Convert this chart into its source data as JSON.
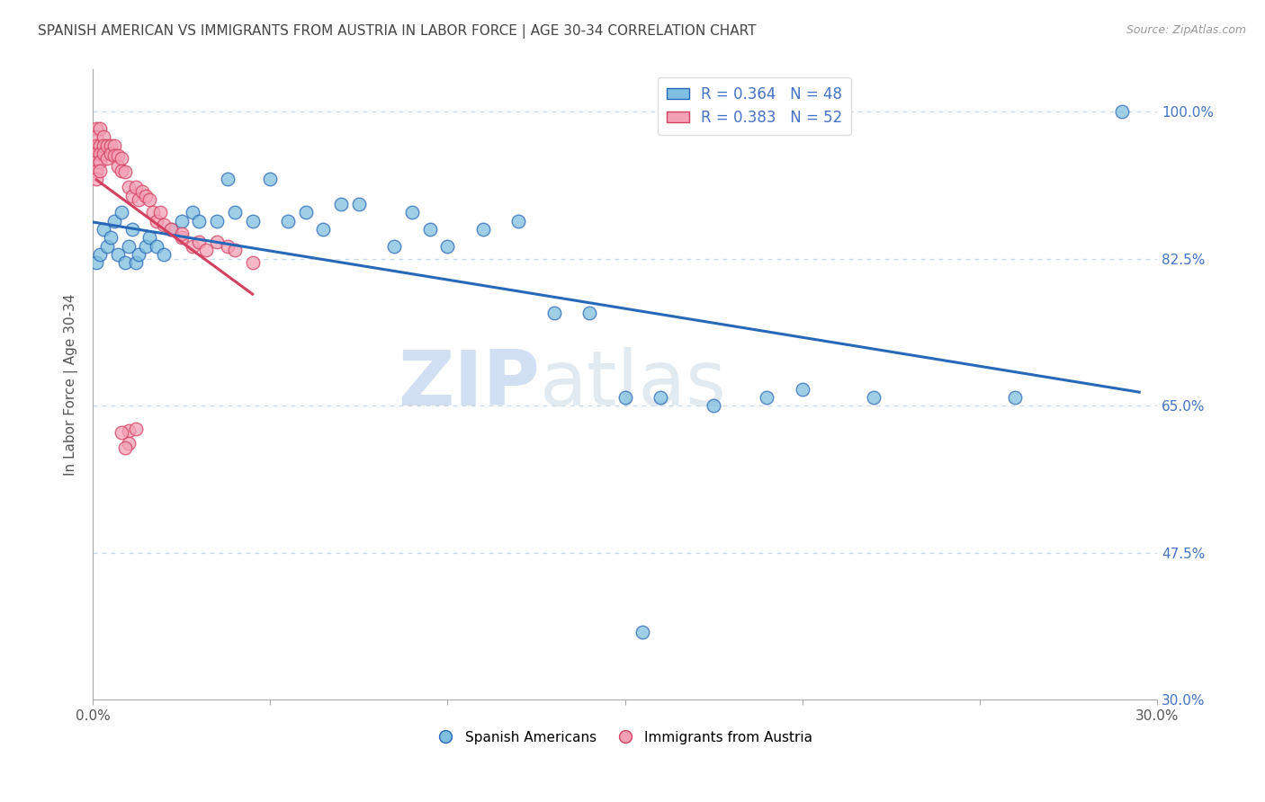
{
  "title": "SPANISH AMERICAN VS IMMIGRANTS FROM AUSTRIA IN LABOR FORCE | AGE 30-34 CORRELATION CHART",
  "source": "Source: ZipAtlas.com",
  "ylabel": "In Labor Force | Age 30-34",
  "xlim": [
    0.0,
    0.3
  ],
  "ylim": [
    0.3,
    1.05
  ],
  "xtick_vals": [
    0.0,
    0.05,
    0.1,
    0.15,
    0.2,
    0.25,
    0.3
  ],
  "xtick_labels": [
    "0.0%",
    "",
    "",
    "",
    "",
    "",
    "30.0%"
  ],
  "ytick_positions": [
    0.3,
    0.475,
    0.65,
    0.825,
    1.0
  ],
  "ytick_labels": [
    "30.0%",
    "47.5%",
    "65.0%",
    "82.5%",
    "100.0%"
  ],
  "R_blue": 0.364,
  "N_blue": 48,
  "R_pink": 0.383,
  "N_pink": 52,
  "color_blue": "#7fbfdf",
  "color_pink": "#f4a0b5",
  "color_blue_line": "#2868b8",
  "color_pink_line": "#d44060",
  "legend_label_blue": "Spanish Americans",
  "legend_label_pink": "Immigrants from Austria",
  "blue_x": [
    0.001,
    0.002,
    0.003,
    0.004,
    0.005,
    0.006,
    0.007,
    0.008,
    0.009,
    0.01,
    0.011,
    0.012,
    0.013,
    0.015,
    0.016,
    0.018,
    0.02,
    0.022,
    0.025,
    0.028,
    0.03,
    0.035,
    0.038,
    0.04,
    0.045,
    0.05,
    0.055,
    0.06,
    0.065,
    0.07,
    0.075,
    0.085,
    0.09,
    0.095,
    0.1,
    0.11,
    0.12,
    0.13,
    0.14,
    0.15,
    0.155,
    0.16,
    0.175,
    0.19,
    0.2,
    0.22,
    0.26,
    0.29
  ],
  "blue_y": [
    0.82,
    0.83,
    0.86,
    0.84,
    0.85,
    0.87,
    0.83,
    0.88,
    0.82,
    0.84,
    0.86,
    0.82,
    0.83,
    0.84,
    0.85,
    0.84,
    0.83,
    0.86,
    0.87,
    0.88,
    0.87,
    0.87,
    0.92,
    0.88,
    0.87,
    0.92,
    0.87,
    0.88,
    0.86,
    0.89,
    0.89,
    0.84,
    0.88,
    0.86,
    0.84,
    0.86,
    0.87,
    0.76,
    0.76,
    0.66,
    0.38,
    0.66,
    0.65,
    0.66,
    0.67,
    0.66,
    0.66,
    1.0
  ],
  "pink_x": [
    0.001,
    0.001,
    0.001,
    0.001,
    0.001,
    0.001,
    0.001,
    0.002,
    0.002,
    0.002,
    0.002,
    0.002,
    0.003,
    0.003,
    0.003,
    0.004,
    0.004,
    0.005,
    0.005,
    0.006,
    0.006,
    0.007,
    0.007,
    0.008,
    0.008,
    0.009,
    0.01,
    0.011,
    0.012,
    0.013,
    0.014,
    0.015,
    0.016,
    0.017,
    0.018,
    0.019,
    0.02,
    0.022,
    0.025,
    0.025,
    0.028,
    0.03,
    0.032,
    0.035,
    0.038,
    0.04,
    0.045,
    0.01,
    0.01,
    0.012,
    0.008,
    0.009
  ],
  "pink_y": [
    0.98,
    0.97,
    0.96,
    0.95,
    0.94,
    0.93,
    0.92,
    0.96,
    0.95,
    0.94,
    0.93,
    0.98,
    0.97,
    0.96,
    0.95,
    0.96,
    0.945,
    0.96,
    0.95,
    0.96,
    0.948,
    0.948,
    0.935,
    0.945,
    0.93,
    0.928,
    0.91,
    0.9,
    0.91,
    0.895,
    0.905,
    0.9,
    0.895,
    0.88,
    0.87,
    0.88,
    0.865,
    0.86,
    0.85,
    0.855,
    0.84,
    0.845,
    0.835,
    0.845,
    0.84,
    0.835,
    0.82,
    0.62,
    0.605,
    0.622,
    0.618,
    0.6
  ],
  "watermark_zip": "ZIP",
  "watermark_atlas": "atlas",
  "background_color": "#ffffff",
  "grid_color": "#c8d8e8"
}
